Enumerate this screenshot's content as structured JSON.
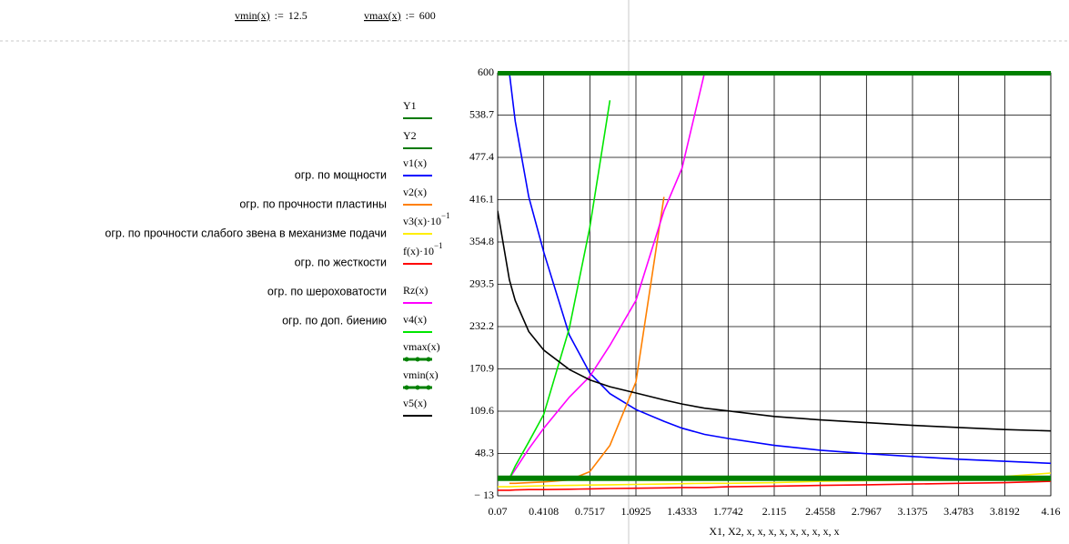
{
  "header": {
    "definitions": [
      {
        "name": "vmin(x)",
        "op": ":=",
        "value": "12.5"
      },
      {
        "name": "vmax(x)",
        "op": ":=",
        "value": "600"
      }
    ]
  },
  "annotations": [
    "огр. по мощности",
    "огр. по прочности пластины",
    "огр. по прочности слабого звена в механизме подачи",
    "огр. по жесткости",
    "огр. по шероховатости",
    "огр. по доп. биению"
  ],
  "chart_data": {
    "type": "line",
    "x_label": "X1, X2, x, x, x, x, x, x, x, x, x",
    "x": [
      0.07,
      0.157,
      0.2,
      0.3,
      0.4108,
      0.6,
      0.7517,
      0.9,
      1.0925,
      1.3,
      1.4333,
      1.6,
      1.7742,
      2.115,
      2.4558,
      2.7967,
      3.1375,
      3.4783,
      3.8192,
      4.16
    ],
    "xlim": [
      0.07,
      4.16
    ],
    "xticks": [
      0.07,
      0.4108,
      0.7517,
      1.0925,
      1.4333,
      1.7742,
      2.115,
      2.4558,
      2.7967,
      3.1375,
      3.4783,
      3.8192,
      4.16
    ],
    "ylim": [
      -13,
      600
    ],
    "yticks": [
      {
        "value": -13,
        "label": "− 13"
      },
      48.3,
      109.6,
      170.9,
      232.2,
      293.5,
      354.8,
      416.1,
      477.4,
      538.7,
      600
    ],
    "grid": true,
    "series": [
      {
        "name": "Y1",
        "color": "#007a00"
      },
      {
        "name": "Y2",
        "color": "#007a00"
      },
      {
        "name": "v1(x)",
        "color": "#0000ff",
        "values": [
          null,
          600,
          530,
          420,
          340,
          220,
          165,
          135,
          112,
          95,
          85,
          76,
          70,
          60,
          53,
          48,
          44,
          40,
          37,
          34
        ]
      },
      {
        "name": "v2(x)",
        "color": "#ff8000",
        "values": [
          null,
          5,
          5,
          6,
          7,
          10,
          22,
          60,
          152,
          420,
          null,
          null,
          null,
          null,
          null,
          null,
          null,
          null,
          null,
          null
        ]
      },
      {
        "name": "v3(x)·10",
        "exponent": "−1",
        "color": "#ffee00",
        "values": [
          0,
          0,
          0.5,
          1,
          1.5,
          2,
          2.5,
          3,
          3.5,
          4,
          4.5,
          5,
          5,
          6,
          8,
          9,
          10,
          12,
          15,
          20
        ]
      },
      {
        "name": "f(x)·10",
        "exponent": "−1",
        "color": "#ff0000",
        "values": [
          -5,
          -5,
          -4.5,
          -4,
          -4,
          -3.5,
          -3,
          -2.5,
          -2,
          -1.5,
          -1,
          -1,
          0,
          1,
          2,
          3,
          4,
          5,
          6,
          8
        ]
      },
      {
        "name": "Rz(x)",
        "color": "#ff00ff",
        "values": [
          null,
          12,
          25,
          55,
          85,
          130,
          160,
          205,
          270,
          400,
          462,
          600,
          null,
          null,
          null,
          null,
          null,
          null,
          null,
          null
        ]
      },
      {
        "name": "v4(x)",
        "color": "#00e600",
        "values": [
          null,
          12,
          30,
          65,
          105,
          230,
          376,
          560,
          null,
          null,
          null,
          null,
          null,
          null,
          null,
          null,
          null,
          null,
          null,
          null
        ]
      },
      {
        "name": "vmax(x)",
        "color": "#008000",
        "width": 6,
        "values": [
          600,
          600,
          600,
          600,
          600,
          600,
          600,
          600,
          600,
          600,
          600,
          600,
          600,
          600,
          600,
          600,
          600,
          600,
          600,
          600
        ]
      },
      {
        "name": "vmin(x)",
        "color": "#008000",
        "width": 6,
        "values": [
          12.5,
          12.5,
          12.5,
          12.5,
          12.5,
          12.5,
          12.5,
          12.5,
          12.5,
          12.5,
          12.5,
          12.5,
          12.5,
          12.5,
          12.5,
          12.5,
          12.5,
          12.5,
          12.5,
          12.5
        ]
      },
      {
        "name": "v5(x)",
        "color": "#000000",
        "values": [
          400,
          300,
          270,
          225,
          198,
          170,
          155,
          145,
          136,
          126,
          120,
          114,
          110,
          102,
          97,
          93,
          89,
          86,
          83,
          81
        ]
      }
    ]
  }
}
